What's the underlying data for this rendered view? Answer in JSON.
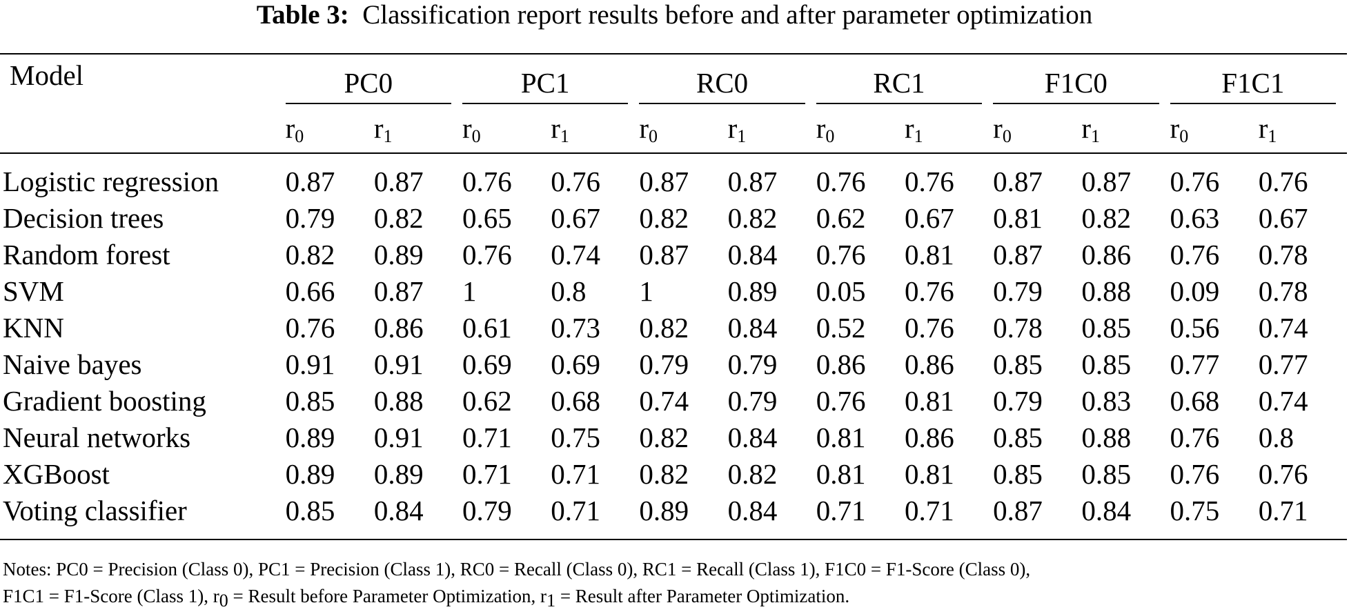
{
  "caption": {
    "label": "Table 3:",
    "text": "Classification report results before and after parameter optimization"
  },
  "table": {
    "model_header": "Model",
    "groups": [
      "PC0",
      "PC1",
      "RC0",
      "RC1",
      "F1C0",
      "F1C1"
    ],
    "sub_base": "r",
    "sub_indices": [
      "0",
      "1"
    ],
    "rows": [
      {
        "model": "Logistic regression",
        "values": [
          "0.87",
          "0.87",
          "0.76",
          "0.76",
          "0.87",
          "0.87",
          "0.76",
          "0.76",
          "0.87",
          "0.87",
          "0.76",
          "0.76"
        ]
      },
      {
        "model": "Decision trees",
        "values": [
          "0.79",
          "0.82",
          "0.65",
          "0.67",
          "0.82",
          "0.82",
          "0.62",
          "0.67",
          "0.81",
          "0.82",
          "0.63",
          "0.67"
        ]
      },
      {
        "model": "Random forest",
        "values": [
          "0.82",
          "0.89",
          "0.76",
          "0.74",
          "0.87",
          "0.84",
          "0.76",
          "0.81",
          "0.87",
          "0.86",
          "0.76",
          "0.78"
        ]
      },
      {
        "model": "SVM",
        "values": [
          "0.66",
          "0.87",
          "1",
          "0.8",
          "1",
          "0.89",
          "0.05",
          "0.76",
          "0.79",
          "0.88",
          "0.09",
          "0.78"
        ]
      },
      {
        "model": "KNN",
        "values": [
          "0.76",
          "0.86",
          "0.61",
          "0.73",
          "0.82",
          "0.84",
          "0.52",
          "0.76",
          "0.78",
          "0.85",
          "0.56",
          "0.74"
        ]
      },
      {
        "model": "Naive bayes",
        "values": [
          "0.91",
          "0.91",
          "0.69",
          "0.69",
          "0.79",
          "0.79",
          "0.86",
          "0.86",
          "0.85",
          "0.85",
          "0.77",
          "0.77"
        ]
      },
      {
        "model": "Gradient boosting",
        "values": [
          "0.85",
          "0.88",
          "0.62",
          "0.68",
          "0.74",
          "0.79",
          "0.76",
          "0.81",
          "0.79",
          "0.83",
          "0.68",
          "0.74"
        ]
      },
      {
        "model": "Neural networks",
        "values": [
          "0.89",
          "0.91",
          "0.71",
          "0.75",
          "0.82",
          "0.84",
          "0.81",
          "0.86",
          "0.85",
          "0.88",
          "0.76",
          "0.8"
        ]
      },
      {
        "model": "XGBoost",
        "values": [
          "0.89",
          "0.89",
          "0.71",
          "0.71",
          "0.82",
          "0.82",
          "0.81",
          "0.81",
          "0.85",
          "0.85",
          "0.76",
          "0.76"
        ]
      },
      {
        "model": "Voting classifier",
        "values": [
          "0.85",
          "0.84",
          "0.79",
          "0.71",
          "0.89",
          "0.84",
          "0.71",
          "0.71",
          "0.87",
          "0.84",
          "0.75",
          "0.71"
        ]
      }
    ]
  },
  "notes": {
    "line1": "Notes: PC0 = Precision (Class 0), PC1 = Precision (Class 1), RC0 = Recall (Class 0), RC1 = Recall (Class 1), F1C0 = F1-Score (Class 0),",
    "line2_a": "F1C1 = F1-Score (Class 1), r",
    "line2_a_sub": "0",
    "line2_b": " = Result before Parameter Optimization, r",
    "line2_b_sub": "1",
    "line2_c": " = Result after Parameter Optimization."
  }
}
